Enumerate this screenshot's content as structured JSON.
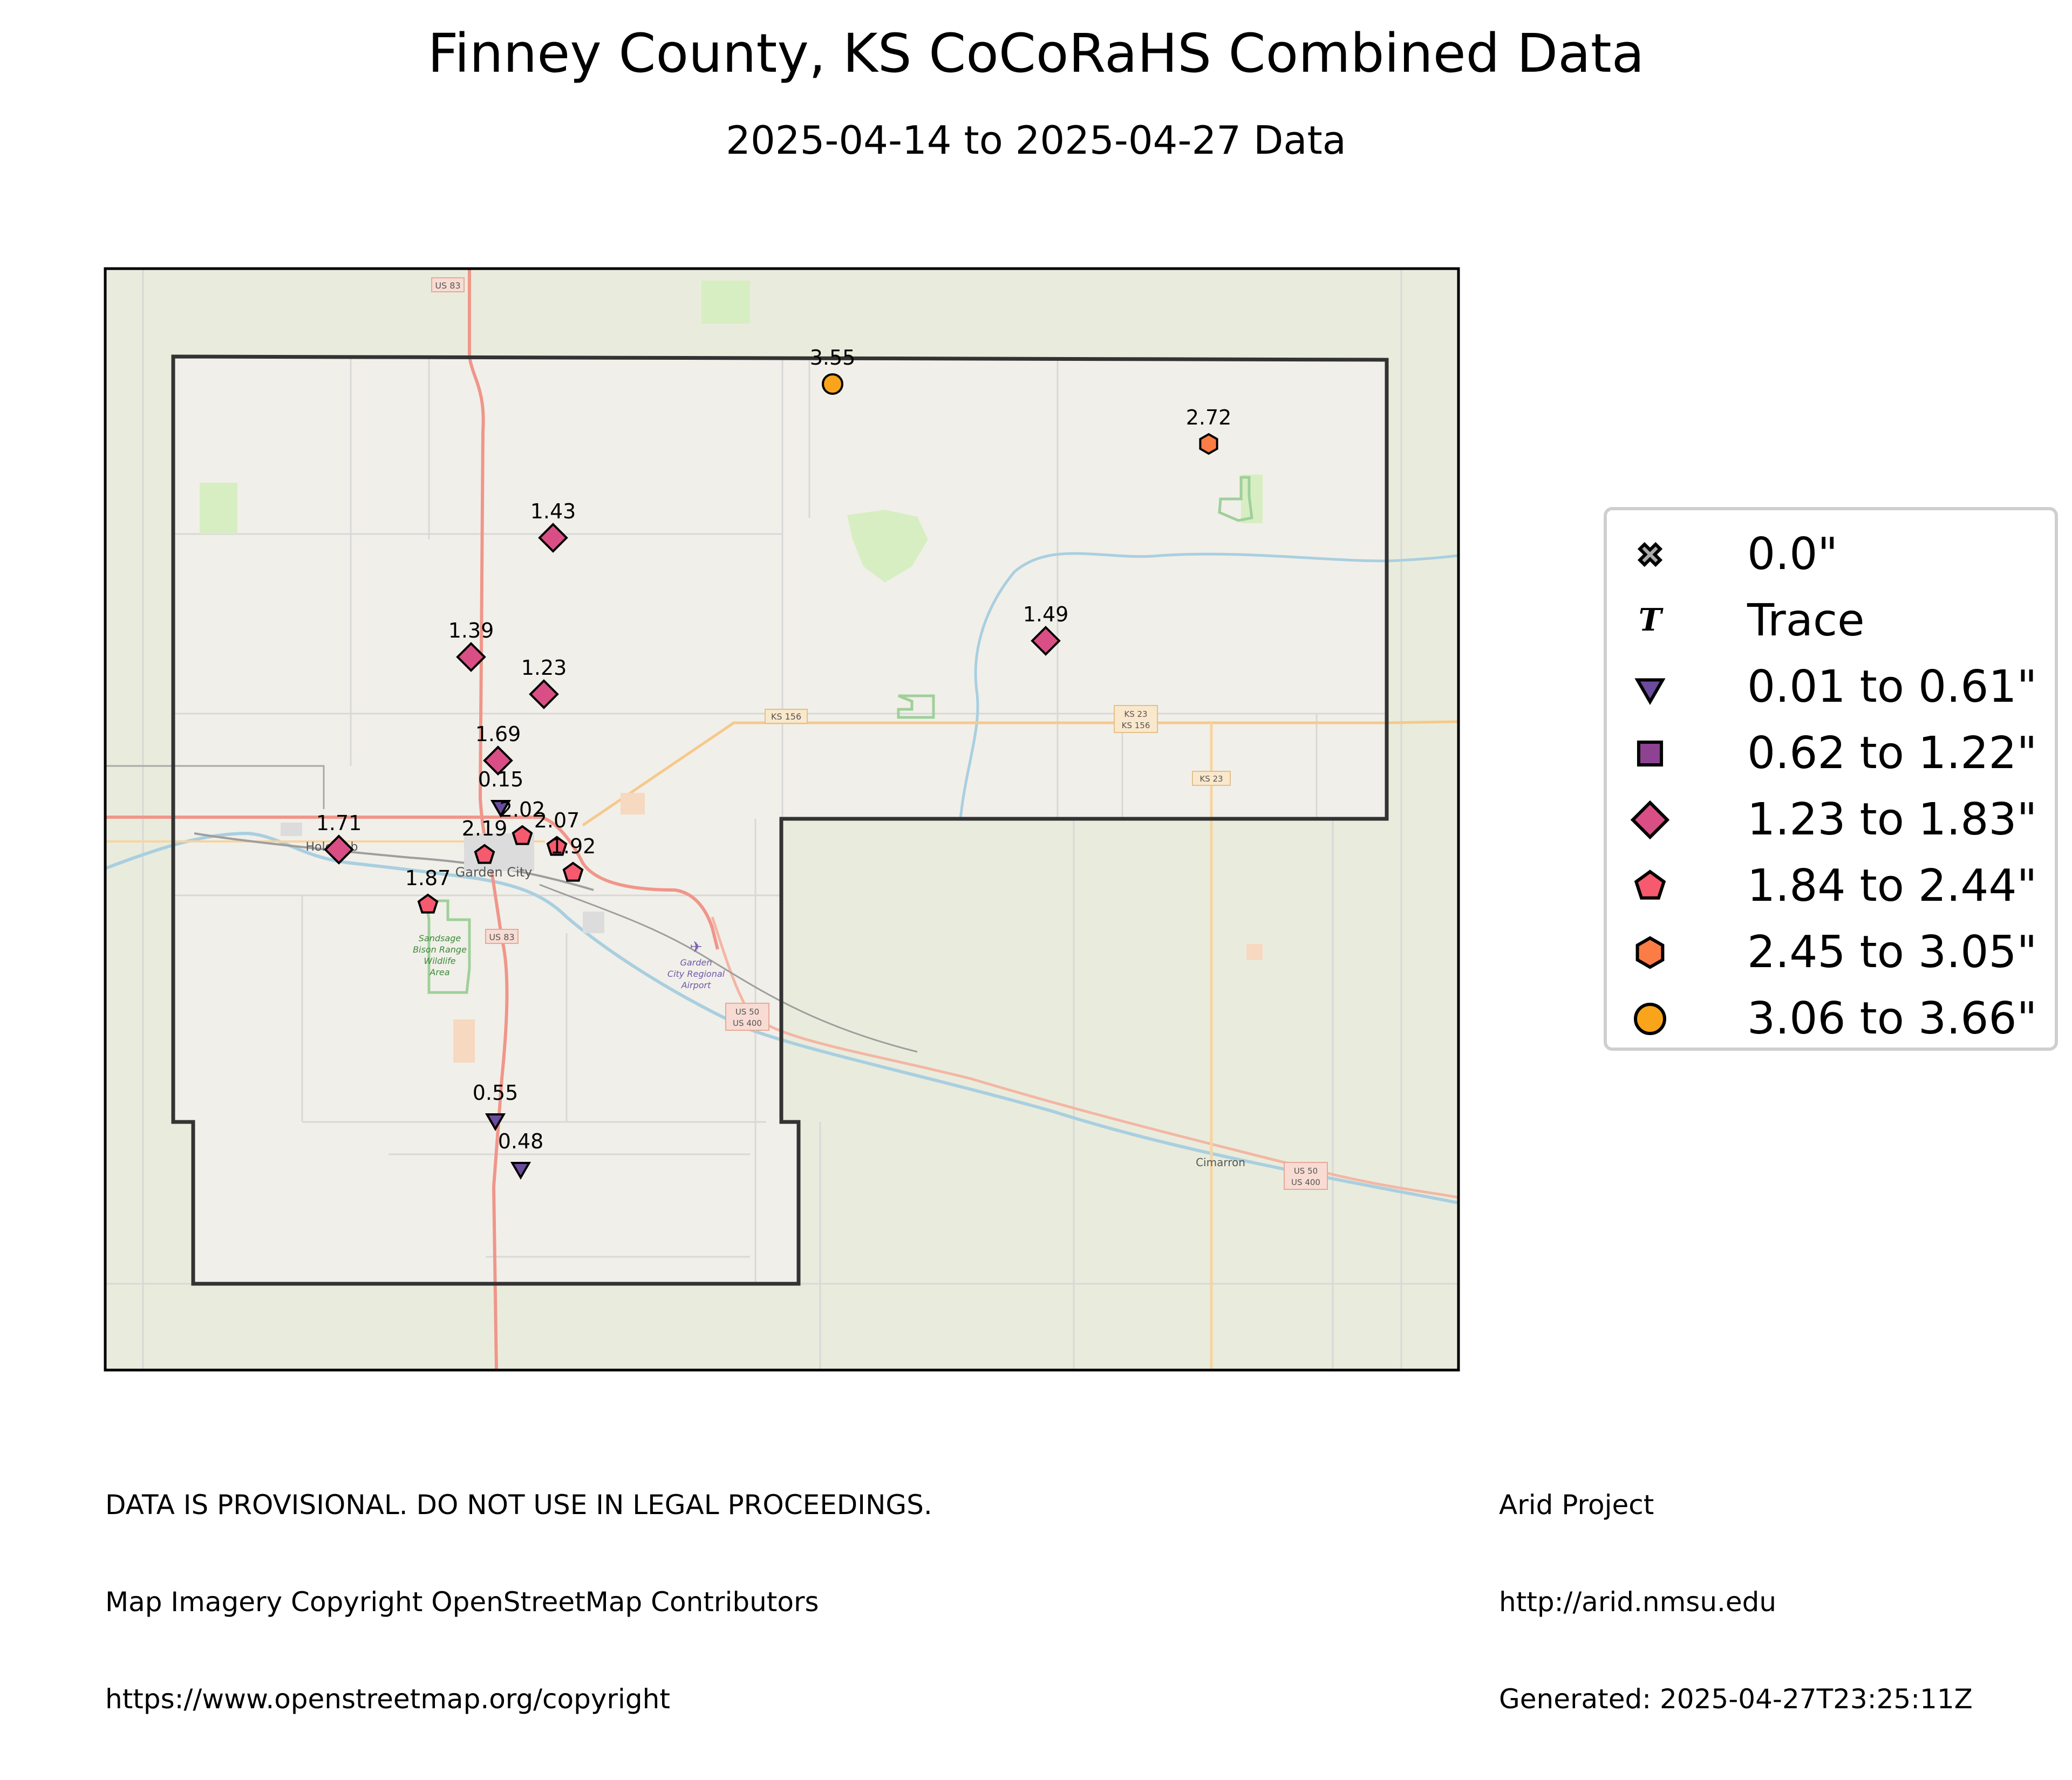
{
  "title": "Finney County, KS CoCoRaHS Combined Data",
  "subtitle": "2025-04-14 to 2025-04-27 Data",
  "legend": [
    {
      "label": "0.0\"",
      "icon": "x-icon",
      "color": "#aaaaaa"
    },
    {
      "label": "Trace",
      "icon": "trace-icon",
      "color": "#000000"
    },
    {
      "label": "0.01 to 0.61\"",
      "icon": "triangle-down-icon",
      "color": "#6a4c9c"
    },
    {
      "label": "0.62 to 1.22\"",
      "icon": "square-icon",
      "color": "#8e4392"
    },
    {
      "label": "1.23 to 1.83\"",
      "icon": "diamond-icon",
      "color": "#d94f85"
    },
    {
      "label": "1.84 to 2.44\"",
      "icon": "pentagon-icon",
      "color": "#f65a6e"
    },
    {
      "label": "2.45 to 3.05\"",
      "icon": "hexagon-icon",
      "color": "#fb7d45"
    },
    {
      "label": "3.06 to 3.66\"",
      "icon": "circle-icon",
      "color": "#f9a41b"
    }
  ],
  "map_labels": {
    "garden_city": "Garden City",
    "holcomb": "Holcomb",
    "cimarron": "Cimarron",
    "us83_north": "US 83",
    "us83_south": "US 83",
    "ks156": "KS 156",
    "ks23_ks156_a": "KS 23",
    "ks23_ks156_b": "KS 156",
    "ks23": "KS 23",
    "us50_a": "US 50",
    "us50_b": "US 400",
    "us50e_a": "US 50",
    "us50e_b": "US 400",
    "wildlife_1": "Sandsage",
    "wildlife_2": "Bison Range",
    "wildlife_3": "Wildlife",
    "wildlife_4": "Area",
    "airport_1": "Garden",
    "airport_2": "City Regional",
    "airport_3": "Airport"
  },
  "stations": [
    {
      "value": "3.55",
      "icon": "circle-icon",
      "color": "#f9a41b"
    },
    {
      "value": "2.72",
      "icon": "hexagon-icon",
      "color": "#fb7d45"
    },
    {
      "value": "1.43",
      "icon": "diamond-icon",
      "color": "#d94f85"
    },
    {
      "value": "1.49",
      "icon": "diamond-icon",
      "color": "#d94f85"
    },
    {
      "value": "1.39",
      "icon": "diamond-icon",
      "color": "#d94f85"
    },
    {
      "value": "1.23",
      "icon": "diamond-icon",
      "color": "#d94f85"
    },
    {
      "value": "1.69",
      "icon": "diamond-icon",
      "color": "#d94f85"
    },
    {
      "value": "0.15",
      "icon": "triangle-down-icon",
      "color": "#6a4c9c"
    },
    {
      "value": "2.02",
      "icon": "pentagon-icon",
      "color": "#f65a6e"
    },
    {
      "value": "2.07",
      "icon": "pentagon-icon",
      "color": "#f65a6e"
    },
    {
      "value": "2.19",
      "icon": "pentagon-icon",
      "color": "#f65a6e"
    },
    {
      "value": "1.92",
      "icon": "pentagon-icon",
      "color": "#f65a6e"
    },
    {
      "value": "1.71",
      "icon": "diamond-icon",
      "color": "#d94f85"
    },
    {
      "value": "1.87",
      "icon": "pentagon-icon",
      "color": "#f65a6e"
    },
    {
      "value": "0.55",
      "icon": "triangle-down-icon",
      "color": "#6a4c9c"
    },
    {
      "value": "0.48",
      "icon": "triangle-down-icon",
      "color": "#6a4c9c"
    }
  ],
  "footer_left": [
    "DATA IS PROVISIONAL. DO NOT USE IN LEGAL PROCEEDINGS.",
    "Map Imagery Copyright OpenStreetMap Contributors",
    "https://www.openstreetmap.org/copyright"
  ],
  "footer_right": [
    "Arid Project",
    "http://arid.nmsu.edu",
    "Generated: 2025-04-27T23:25:11Z"
  ]
}
